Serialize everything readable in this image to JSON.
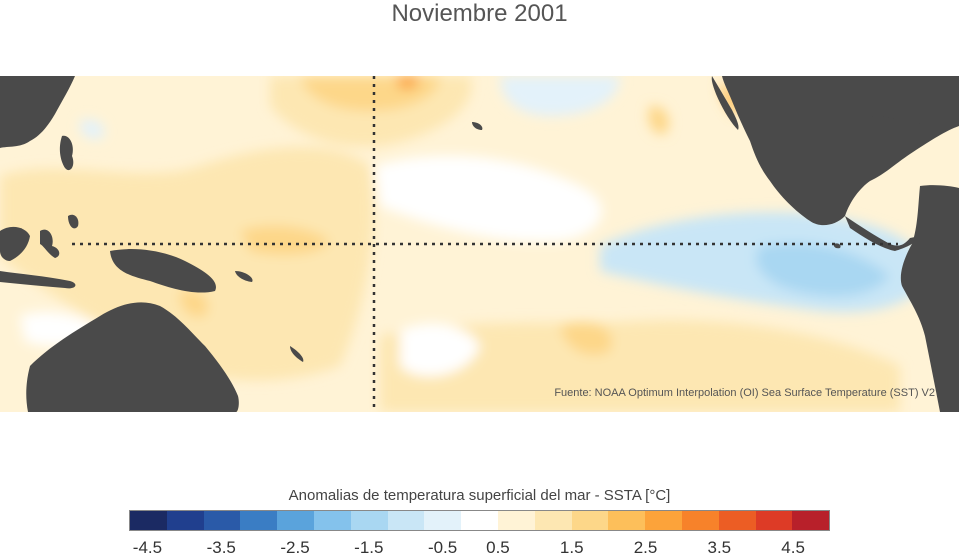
{
  "title": "Noviembre 2001",
  "source_note": "Fuente: NOAA Optimum Interpolation (OI) Sea Surface Temperature (SST) V2",
  "colorbar": {
    "title": "Anomalias de temperatura superficial del mar - SSTA  [°C]",
    "colors": [
      "#1b2a63",
      "#203f8e",
      "#2a5aa8",
      "#3a7dc4",
      "#5aa3dc",
      "#84c2ec",
      "#a9d7f2",
      "#c9e6f6",
      "#e3f2fa",
      "#ffffff",
      "#fff3d6",
      "#fde7b2",
      "#fdd789",
      "#fdbf5a",
      "#fca33a",
      "#f7822a",
      "#ec5d24",
      "#dd3b26",
      "#b8202a"
    ],
    "ticks": [
      "-4.5",
      "-3.5",
      "-2.5",
      "-1.5",
      "-0.5",
      "0.5",
      "1.5",
      "2.5",
      "3.5",
      "4.5"
    ]
  },
  "map": {
    "land_color": "#4a4a4a",
    "gridline_color": "#333333",
    "anomaly_colors": {
      "warm_light": "#fff3d6",
      "warm_mid": "#fde7b2",
      "warm": "#fdd789",
      "warm_strong": "#fdbf5a",
      "warm_peak": "#fca33a",
      "cool_light": "#e3f2fa",
      "cool_mid": "#c9e6f6",
      "cool": "#a9d7f2"
    }
  }
}
